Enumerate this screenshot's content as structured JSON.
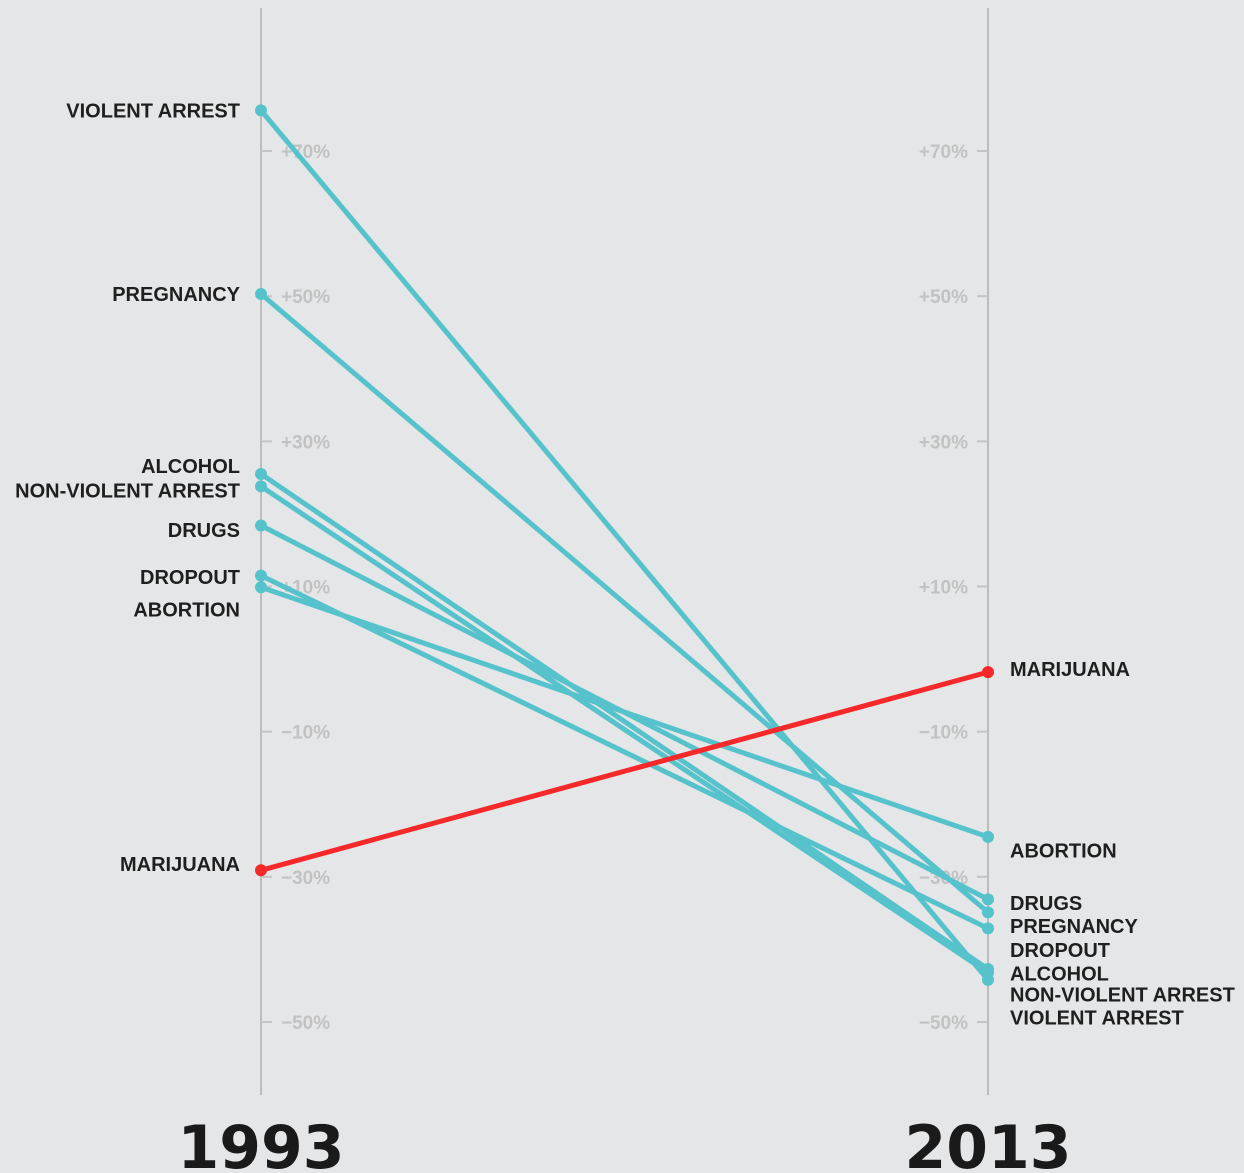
{
  "chart_data": {
    "type": "line",
    "x": [
      "1993",
      "2013"
    ],
    "ylim": [
      -60,
      85
    ],
    "yticks": [
      {
        "value": 70,
        "label": "+70%"
      },
      {
        "value": 50,
        "label": "+50%"
      },
      {
        "value": 30,
        "label": "+30%"
      },
      {
        "value": 10,
        "label": "+10%"
      },
      {
        "value": -10,
        "label": "−10%"
      },
      {
        "value": -30,
        "label": "−30%"
      },
      {
        "value": -50,
        "label": "−50%"
      }
    ],
    "highlight_color": "#f5282a",
    "series_color": "#56c2cc",
    "series": [
      {
        "name": "VIOLENT ARREST",
        "values": [
          75.6,
          -44.2
        ],
        "color": "#56c2cc"
      },
      {
        "name": "PREGNANCY",
        "values": [
          50.3,
          -34.9
        ],
        "color": "#56c2cc"
      },
      {
        "name": "ALCOHOL",
        "values": [
          25.5,
          -42.7
        ],
        "color": "#56c2cc"
      },
      {
        "name": "NON-VIOLENT ARREST",
        "values": [
          23.8,
          -43.2
        ],
        "color": "#56c2cc"
      },
      {
        "name": "DRUGS",
        "values": [
          18.4,
          -33.1
        ],
        "color": "#56c2cc"
      },
      {
        "name": "DROPOUT",
        "values": [
          11.5,
          -37.1
        ],
        "color": "#56c2cc"
      },
      {
        "name": "ABORTION",
        "values": [
          9.9,
          -24.5
        ],
        "color": "#56c2cc"
      },
      {
        "name": "MARIJUANA",
        "values": [
          -29.1,
          -1.8
        ],
        "color": "#f5282a"
      }
    ],
    "labels_1993": [
      {
        "name": "VIOLENT ARREST",
        "at": 75.6
      },
      {
        "name": "PREGNANCY",
        "at": 50.3
      },
      {
        "name": "ALCOHOL",
        "at": 26.6
      },
      {
        "name": "NON-VIOLENT ARREST",
        "at": 23.2
      },
      {
        "name": "DRUGS",
        "at": 17.8
      },
      {
        "name": "DROPOUT",
        "at": 11.3
      },
      {
        "name": "ABORTION",
        "at": 6.8
      },
      {
        "name": "MARIJUANA",
        "at": -28.2
      }
    ],
    "labels_2013": [
      {
        "name": "MARIJUANA",
        "at": -1.4
      },
      {
        "name": "ABORTION",
        "at": -26.4
      },
      {
        "name": "DRUGS",
        "at": -33.6
      },
      {
        "name": "PREGNANCY",
        "at": -36.8
      },
      {
        "name": "DROPOUT",
        "at": -40.1
      },
      {
        "name": "ALCOHOL",
        "at": -43.3
      },
      {
        "name": "NON-VIOLENT ARREST",
        "at": -46.2
      },
      {
        "name": "VIOLENT ARREST",
        "at": -49.4
      }
    ]
  }
}
